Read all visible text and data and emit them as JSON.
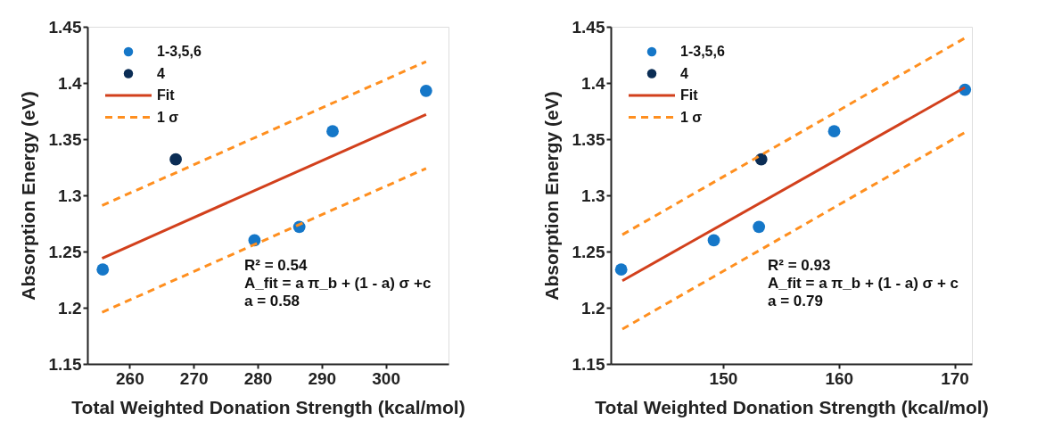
{
  "chart_data": [
    {
      "type": "scatter",
      "xlabel": "Total Weighted Donation Strength (kcal/mol)",
      "ylabel": "Absorption Energy (eV)",
      "xlim": [
        253.4,
        309.8
      ],
      "xticks": [
        260,
        270,
        280,
        290,
        300
      ],
      "ylim": [
        1.15,
        1.45
      ],
      "yticks": [
        1.15,
        1.2,
        1.25,
        1.3,
        1.35,
        1.4,
        1.45
      ],
      "grid": false,
      "legend": "top left",
      "series": [
        {
          "name": "1-3,5,6",
          "marker": "circle",
          "color": "#1577c8",
          "x": [
            255.8,
            279.5,
            286.5,
            291.7,
            306.3
          ],
          "values": [
            1.234,
            1.26,
            1.272,
            1.357,
            1.393
          ]
        },
        {
          "name": "4",
          "marker": "circle",
          "color": "#0b2d55",
          "x": [
            267.2
          ],
          "values": [
            1.332
          ]
        },
        {
          "name": "Fit",
          "type": "line",
          "line_style": "solid",
          "color": "#d2401c",
          "x": [
            255.7,
            306.3
          ],
          "values": [
            1.244,
            1.372
          ]
        },
        {
          "name": "1 σ",
          "type": "line",
          "line_style": "dashed",
          "color": "#ff8f1f",
          "x": [
            255.7,
            306.3
          ],
          "values": [
            1.291,
            1.419
          ]
        },
        {
          "type": "line",
          "line_style": "dashed",
          "color": "#ff8f1f",
          "x": [
            255.7,
            306.3
          ],
          "values": [
            1.196,
            1.324
          ]
        }
      ],
      "annotations": [
        "R² = 0.54",
        "A_fit = a π_b + (1 - a) σ +c",
        "a = 0.58"
      ]
    },
    {
      "type": "scatter",
      "xlabel": "Total Weighted Donation Strength (kcal/mol)",
      "ylabel": "Absorption Energy (eV)",
      "xlim": [
        140.3,
        171.5
      ],
      "xticks": [
        150,
        160,
        170
      ],
      "ylim": [
        1.15,
        1.45
      ],
      "yticks": [
        1.15,
        1.2,
        1.25,
        1.3,
        1.35,
        1.4,
        1.45
      ],
      "grid": false,
      "legend": "top left",
      "series": [
        {
          "name": "1-3,5,6",
          "marker": "circle",
          "color": "#1577c8",
          "x": [
            141.2,
            149.2,
            153.1,
            159.6,
            170.9
          ],
          "values": [
            1.234,
            1.26,
            1.272,
            1.357,
            1.394
          ]
        },
        {
          "name": "4",
          "marker": "circle",
          "color": "#0b2d55",
          "x": [
            153.3
          ],
          "values": [
            1.332
          ]
        },
        {
          "name": "Fit",
          "type": "line",
          "line_style": "solid",
          "color": "#d2401c",
          "x": [
            141.3,
            170.9
          ],
          "values": [
            1.224,
            1.396
          ]
        },
        {
          "name": "1 σ",
          "type": "line",
          "line_style": "dashed",
          "color": "#ff8f1f",
          "x": [
            141.3,
            170.9
          ],
          "values": [
            1.265,
            1.44
          ]
        },
        {
          "type": "line",
          "line_style": "dashed",
          "color": "#ff8f1f",
          "x": [
            141.3,
            170.9
          ],
          "values": [
            1.181,
            1.356
          ]
        }
      ],
      "annotations": [
        "R² = 0.93",
        "A_fit = a π_b + (1 - a) σ + c",
        "a = 0.79"
      ]
    }
  ]
}
